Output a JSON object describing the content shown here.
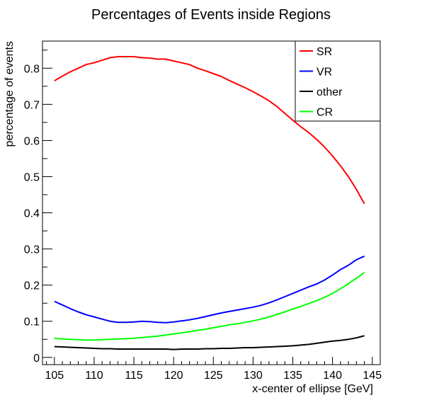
{
  "chart_data": {
    "type": "line",
    "title": "Percentages of Events inside Regions",
    "xlabel": "x-center of ellipse [GeV]",
    "ylabel": "percentage of events",
    "xlim": [
      103.5,
      146
    ],
    "ylim": [
      -0.02,
      0.875
    ],
    "x_ticks": [
      105,
      110,
      115,
      120,
      125,
      130,
      135,
      140,
      145
    ],
    "y_ticks": [
      0,
      0.1,
      0.2,
      0.3,
      0.4,
      0.5,
      0.6,
      0.7,
      0.8
    ],
    "grid": false,
    "legend_position": "top-right",
    "x": [
      105,
      106,
      107,
      108,
      109,
      110,
      111,
      112,
      113,
      114,
      115,
      116,
      117,
      118,
      119,
      120,
      121,
      122,
      123,
      124,
      125,
      126,
      127,
      128,
      129,
      130,
      131,
      132,
      133,
      134,
      135,
      136,
      137,
      138,
      139,
      140,
      141,
      142,
      143,
      144
    ],
    "series": [
      {
        "name": "SR",
        "color": "#ff0000",
        "values": [
          0.765,
          0.778,
          0.79,
          0.8,
          0.81,
          0.815,
          0.822,
          0.829,
          0.832,
          0.832,
          0.832,
          0.829,
          0.828,
          0.825,
          0.825,
          0.82,
          0.815,
          0.81,
          0.8,
          0.793,
          0.785,
          0.777,
          0.766,
          0.756,
          0.746,
          0.735,
          0.723,
          0.71,
          0.694,
          0.675,
          0.656,
          0.638,
          0.622,
          0.603,
          0.582,
          0.557,
          0.53,
          0.5,
          0.465,
          0.425
        ]
      },
      {
        "name": "VR",
        "color": "#0000ff",
        "values": [
          0.155,
          0.145,
          0.135,
          0.126,
          0.118,
          0.112,
          0.106,
          0.1,
          0.097,
          0.097,
          0.098,
          0.1,
          0.099,
          0.097,
          0.096,
          0.098,
          0.101,
          0.104,
          0.108,
          0.113,
          0.118,
          0.123,
          0.127,
          0.131,
          0.135,
          0.139,
          0.144,
          0.151,
          0.159,
          0.168,
          0.177,
          0.186,
          0.195,
          0.203,
          0.214,
          0.228,
          0.243,
          0.255,
          0.27,
          0.28
        ]
      },
      {
        "name": "other",
        "color": "#000000",
        "values": [
          0.03,
          0.029,
          0.028,
          0.027,
          0.026,
          0.025,
          0.024,
          0.024,
          0.023,
          0.023,
          0.023,
          0.023,
          0.023,
          0.023,
          0.023,
          0.022,
          0.023,
          0.023,
          0.023,
          0.024,
          0.024,
          0.025,
          0.025,
          0.026,
          0.027,
          0.027,
          0.028,
          0.029,
          0.03,
          0.031,
          0.032,
          0.034,
          0.036,
          0.039,
          0.042,
          0.045,
          0.047,
          0.05,
          0.054,
          0.06
        ]
      },
      {
        "name": "CR",
        "color": "#00ff00",
        "values": [
          0.053,
          0.051,
          0.05,
          0.049,
          0.048,
          0.048,
          0.049,
          0.05,
          0.051,
          0.052,
          0.053,
          0.055,
          0.057,
          0.059,
          0.062,
          0.065,
          0.068,
          0.071,
          0.075,
          0.078,
          0.082,
          0.086,
          0.09,
          0.093,
          0.097,
          0.101,
          0.106,
          0.112,
          0.119,
          0.126,
          0.134,
          0.141,
          0.149,
          0.157,
          0.166,
          0.177,
          0.19,
          0.204,
          0.219,
          0.235
        ]
      }
    ]
  }
}
